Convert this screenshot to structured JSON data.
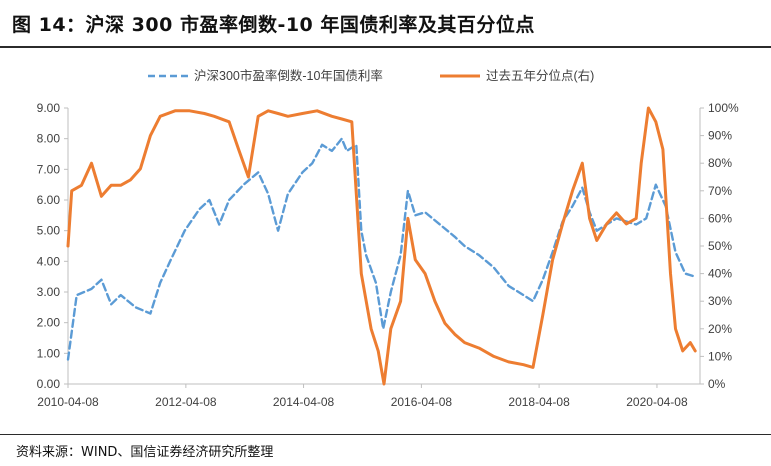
{
  "header": {
    "title": "图 14：沪深 300 市盈率倒数-10 年国债利率及其百分位点"
  },
  "footer": {
    "source": "资料来源：WIND、国信证券经济研究所整理"
  },
  "colors": {
    "blue": "#5b9bd5",
    "orange": "#ed7d31",
    "axis": "#bfbfbf"
  },
  "chart_data": {
    "type": "line",
    "grid": false,
    "legend_position": "top",
    "x_ticks": [
      "2010-04-08",
      "2012-04-08",
      "2014-04-08",
      "2016-04-08",
      "2018-04-08",
      "2020-04-08"
    ],
    "y_left": {
      "ylim": [
        0,
        9
      ],
      "ticks": [
        "0.00",
        "1.00",
        "2.00",
        "3.00",
        "4.00",
        "5.00",
        "6.00",
        "7.00",
        "8.00",
        "9.00"
      ]
    },
    "y_right": {
      "ylim": [
        0,
        100
      ],
      "ticks": [
        "0%",
        "10%",
        "20%",
        "30%",
        "40%",
        "50%",
        "60%",
        "70%",
        "80%",
        "90%",
        "100%"
      ]
    },
    "series": [
      {
        "name": "沪深300市盈率倒数-10年国债利率",
        "axis": "left",
        "style": "dashed",
        "points": [
          [
            "2010-04-08",
            0.8
          ],
          [
            "2010-06-01",
            2.9
          ],
          [
            "2010-09-01",
            3.1
          ],
          [
            "2010-11-01",
            3.4
          ],
          [
            "2011-01-01",
            2.6
          ],
          [
            "2011-03-01",
            2.9
          ],
          [
            "2011-06-01",
            2.5
          ],
          [
            "2011-09-01",
            2.3
          ],
          [
            "2011-11-01",
            3.3
          ],
          [
            "2012-01-01",
            4.0
          ],
          [
            "2012-04-01",
            5.0
          ],
          [
            "2012-07-01",
            5.7
          ],
          [
            "2012-09-01",
            6.0
          ],
          [
            "2012-11-01",
            5.2
          ],
          [
            "2013-01-01",
            6.0
          ],
          [
            "2013-04-01",
            6.5
          ],
          [
            "2013-07-01",
            6.9
          ],
          [
            "2013-09-01",
            6.2
          ],
          [
            "2013-11-01",
            5.0
          ],
          [
            "2014-01-01",
            6.2
          ],
          [
            "2014-04-01",
            6.9
          ],
          [
            "2014-06-01",
            7.2
          ],
          [
            "2014-08-01",
            7.8
          ],
          [
            "2014-10-01",
            7.6
          ],
          [
            "2014-12-01",
            8.0
          ],
          [
            "2015-01-01",
            7.6
          ],
          [
            "2015-03-01",
            7.8
          ],
          [
            "2015-04-01",
            5.0
          ],
          [
            "2015-05-01",
            4.2
          ],
          [
            "2015-07-01",
            3.3
          ],
          [
            "2015-08-15",
            1.8
          ],
          [
            "2015-10-01",
            3.0
          ],
          [
            "2015-12-01",
            4.2
          ],
          [
            "2016-01-15",
            6.3
          ],
          [
            "2016-03-01",
            5.5
          ],
          [
            "2016-05-01",
            5.6
          ],
          [
            "2016-08-01",
            5.2
          ],
          [
            "2016-11-01",
            4.8
          ],
          [
            "2017-01-01",
            4.5
          ],
          [
            "2017-04-01",
            4.2
          ],
          [
            "2017-07-01",
            3.8
          ],
          [
            "2017-10-01",
            3.2
          ],
          [
            "2018-01-01",
            2.9
          ],
          [
            "2018-03-01",
            2.7
          ],
          [
            "2018-05-01",
            3.4
          ],
          [
            "2018-07-01",
            4.3
          ],
          [
            "2018-09-01",
            5.3
          ],
          [
            "2018-11-01",
            5.8
          ],
          [
            "2019-01-01",
            6.4
          ],
          [
            "2019-02-15",
            5.6
          ],
          [
            "2019-04-01",
            5.0
          ],
          [
            "2019-06-01",
            5.2
          ],
          [
            "2019-08-01",
            5.4
          ],
          [
            "2019-10-01",
            5.3
          ],
          [
            "2019-12-01",
            5.2
          ],
          [
            "2020-02-01",
            5.4
          ],
          [
            "2020-04-01",
            6.5
          ],
          [
            "2020-06-01",
            5.8
          ],
          [
            "2020-08-01",
            4.3
          ],
          [
            "2020-10-01",
            3.6
          ],
          [
            "2020-12-01",
            3.5
          ]
        ]
      },
      {
        "name": "过去五年分位点(右)",
        "axis": "right",
        "style": "solid",
        "points": [
          [
            "2010-04-08",
            50
          ],
          [
            "2010-05-01",
            70
          ],
          [
            "2010-07-01",
            72
          ],
          [
            "2010-09-01",
            80
          ],
          [
            "2010-11-01",
            68
          ],
          [
            "2011-01-01",
            72
          ],
          [
            "2011-03-01",
            72
          ],
          [
            "2011-05-01",
            74
          ],
          [
            "2011-07-01",
            78
          ],
          [
            "2011-09-01",
            90
          ],
          [
            "2011-11-01",
            97
          ],
          [
            "2012-02-01",
            99
          ],
          [
            "2012-05-01",
            99
          ],
          [
            "2012-08-01",
            98
          ],
          [
            "2012-10-01",
            97
          ],
          [
            "2013-01-01",
            95
          ],
          [
            "2013-03-01",
            85
          ],
          [
            "2013-05-01",
            75
          ],
          [
            "2013-07-01",
            97
          ],
          [
            "2013-09-01",
            99
          ],
          [
            "2013-11-01",
            98
          ],
          [
            "2014-01-01",
            97
          ],
          [
            "2014-04-01",
            98
          ],
          [
            "2014-07-01",
            99
          ],
          [
            "2014-10-01",
            97
          ],
          [
            "2014-12-01",
            96
          ],
          [
            "2015-02-01",
            95
          ],
          [
            "2015-04-01",
            40
          ],
          [
            "2015-06-01",
            20
          ],
          [
            "2015-07-15",
            12
          ],
          [
            "2015-08-20",
            0
          ],
          [
            "2015-10-01",
            20
          ],
          [
            "2015-12-01",
            30
          ],
          [
            "2016-01-15",
            60
          ],
          [
            "2016-03-01",
            45
          ],
          [
            "2016-05-01",
            40
          ],
          [
            "2016-07-01",
            30
          ],
          [
            "2016-09-01",
            22
          ],
          [
            "2016-11-01",
            18
          ],
          [
            "2017-01-01",
            15
          ],
          [
            "2017-04-01",
            13
          ],
          [
            "2017-07-01",
            10
          ],
          [
            "2017-10-01",
            8
          ],
          [
            "2018-01-01",
            7
          ],
          [
            "2018-03-01",
            6
          ],
          [
            "2018-05-01",
            25
          ],
          [
            "2018-07-01",
            45
          ],
          [
            "2018-09-01",
            58
          ],
          [
            "2018-11-01",
            70
          ],
          [
            "2019-01-01",
            80
          ],
          [
            "2019-02-15",
            60
          ],
          [
            "2019-04-01",
            52
          ],
          [
            "2019-06-01",
            58
          ],
          [
            "2019-08-01",
            62
          ],
          [
            "2019-10-01",
            58
          ],
          [
            "2019-12-01",
            60
          ],
          [
            "2020-01-01",
            80
          ],
          [
            "2020-02-15",
            100
          ],
          [
            "2020-04-01",
            95
          ],
          [
            "2020-05-15",
            85
          ],
          [
            "2020-07-01",
            40
          ],
          [
            "2020-08-01",
            20
          ],
          [
            "2020-09-15",
            12
          ],
          [
            "2020-11-01",
            15
          ],
          [
            "2020-12-01",
            12
          ]
        ]
      }
    ]
  }
}
